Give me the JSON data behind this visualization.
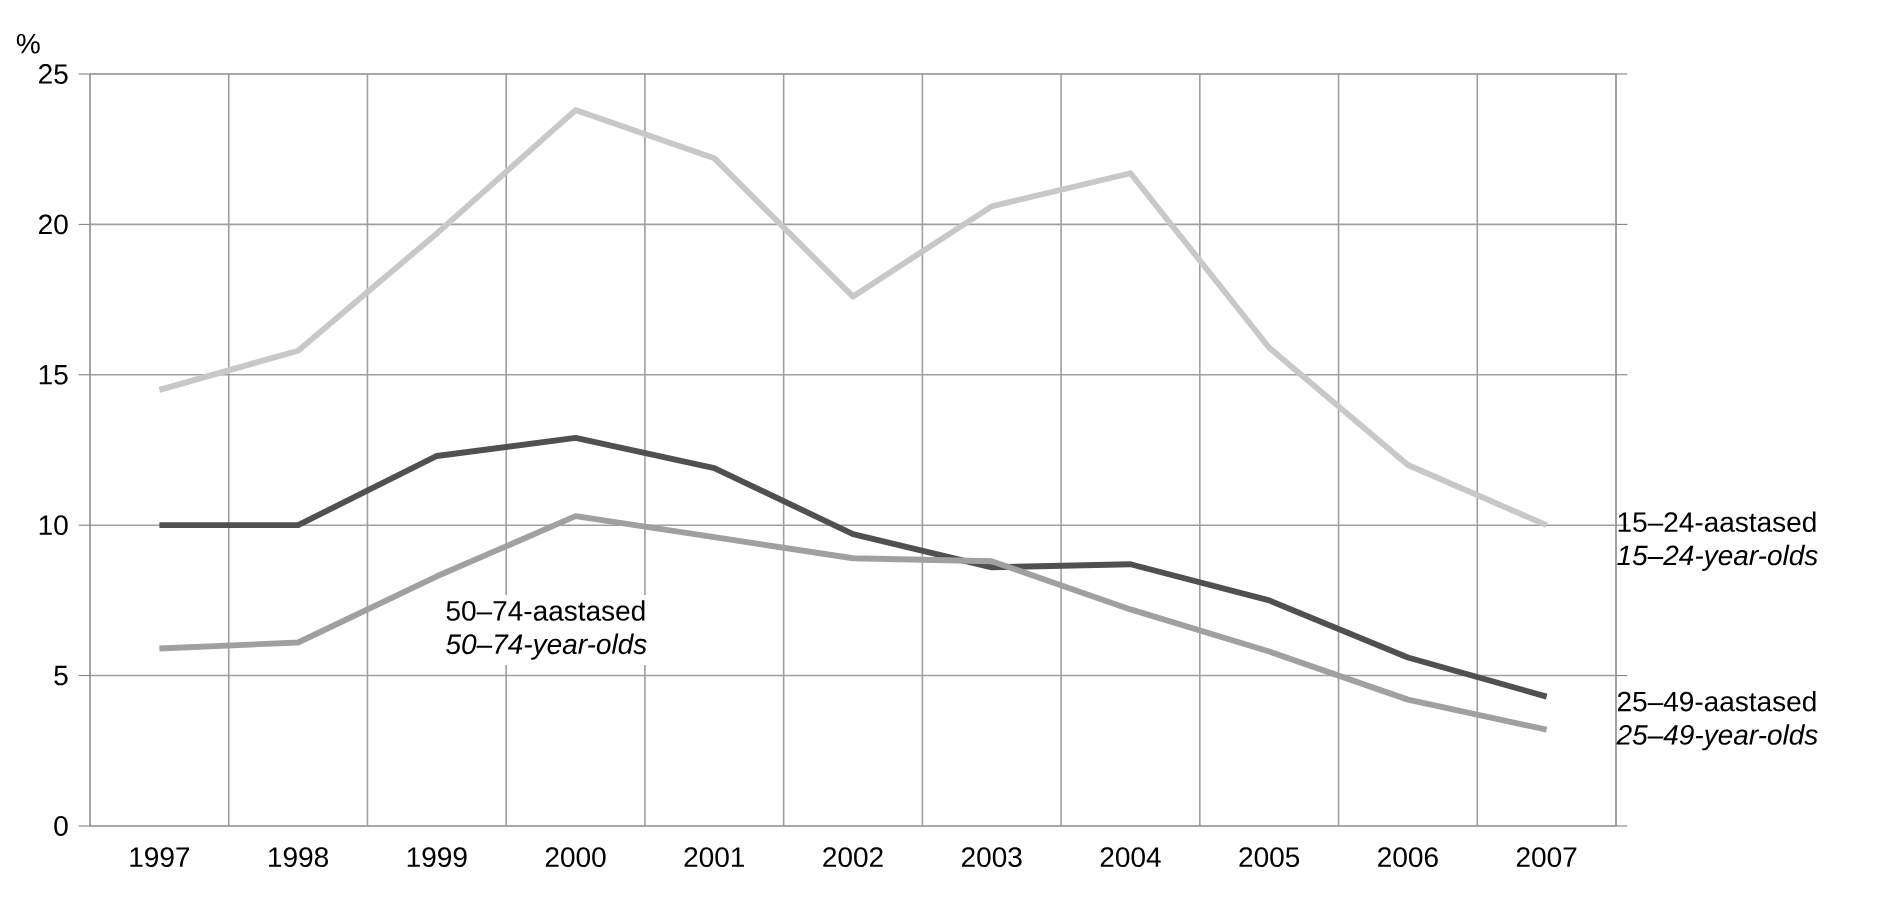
{
  "chart_data": {
    "type": "line",
    "ylabel": "%",
    "categories": [
      "1997",
      "1998",
      "1999",
      "2000",
      "2001",
      "2002",
      "2003",
      "2004",
      "2005",
      "2006",
      "2007"
    ],
    "ylim": [
      0,
      25
    ],
    "yticks": [
      0,
      5,
      10,
      15,
      20,
      25
    ],
    "grid": true,
    "legend": false,
    "marker": "none",
    "line_style": "solid",
    "series": [
      {
        "name": "15–24-aastased *15–24-year-olds*",
        "color": "#c8c8c8",
        "values": [
          14.5,
          15.8,
          19.7,
          23.8,
          22.2,
          17.6,
          20.6,
          21.7,
          15.9,
          12.0,
          10.0
        ]
      },
      {
        "name": "25–49-aastased *25–49-year-olds*",
        "color": "#505050",
        "values": [
          10.0,
          10.0,
          12.3,
          12.9,
          11.9,
          9.7,
          8.6,
          8.7,
          7.5,
          5.6,
          4.3
        ]
      },
      {
        "name": "50–74-aastased *50–74-year-olds*",
        "color": "#a0a0a0",
        "values": [
          5.9,
          6.1,
          8.3,
          10.3,
          9.6,
          8.9,
          8.8,
          7.2,
          5.8,
          4.2,
          3.2
        ]
      }
    ]
  }
}
